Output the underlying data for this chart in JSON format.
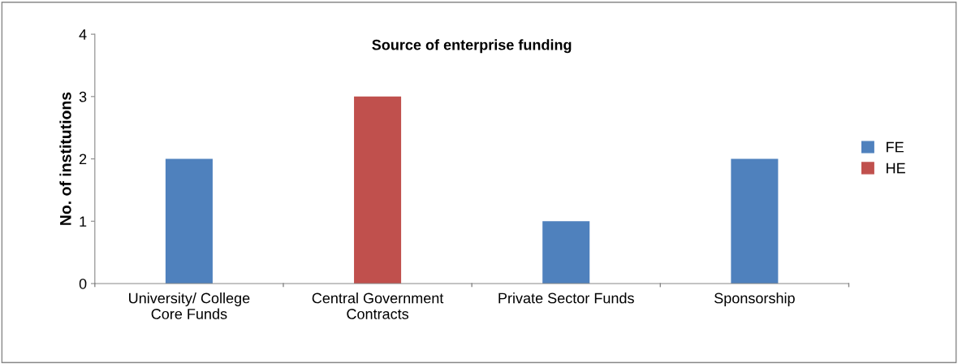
{
  "chart_data": {
    "type": "bar",
    "title": "Source of enterprise funding",
    "ylabel": "No. of institutions",
    "categories": [
      "University/ College\nCore Funds",
      "Central Government\nContracts",
      "Private Sector Funds",
      "Sponsorship"
    ],
    "stacked": true,
    "series": [
      {
        "name": "FE",
        "color": "#4f81bd",
        "values": [
          2,
          null,
          1,
          2
        ]
      },
      {
        "name": "HE",
        "color": "#c0504d",
        "values": [
          null,
          3,
          null,
          null
        ]
      }
    ],
    "ylim": [
      0,
      4
    ],
    "yticks": [
      0,
      1,
      2,
      3,
      4
    ],
    "grid": false,
    "legend": "right"
  }
}
